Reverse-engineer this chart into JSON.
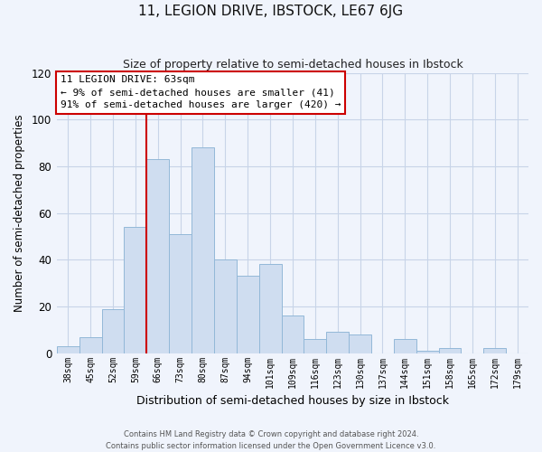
{
  "title": "11, LEGION DRIVE, IBSTOCK, LE67 6JG",
  "subtitle": "Size of property relative to semi-detached houses in Ibstock",
  "xlabel": "Distribution of semi-detached houses by size in Ibstock",
  "ylabel": "Number of semi-detached properties",
  "bin_labels": [
    "38sqm",
    "45sqm",
    "52sqm",
    "59sqm",
    "66sqm",
    "73sqm",
    "80sqm",
    "87sqm",
    "94sqm",
    "101sqm",
    "109sqm",
    "116sqm",
    "123sqm",
    "130sqm",
    "137sqm",
    "144sqm",
    "151sqm",
    "158sqm",
    "165sqm",
    "172sqm",
    "179sqm"
  ],
  "bar_values": [
    3,
    7,
    19,
    54,
    83,
    51,
    88,
    40,
    33,
    38,
    16,
    6,
    9,
    8,
    0,
    6,
    1,
    2,
    0,
    2,
    0
  ],
  "bar_color": "#cfddf0",
  "bar_edge_color": "#93b8d8",
  "vline_color": "#cc0000",
  "vline_bin_index": 4,
  "ylim": [
    0,
    120
  ],
  "yticks": [
    0,
    20,
    40,
    60,
    80,
    100,
    120
  ],
  "annotation_title": "11 LEGION DRIVE: 63sqm",
  "annotation_line1": "← 9% of semi-detached houses are smaller (41)",
  "annotation_line2": "91% of semi-detached houses are larger (420) →",
  "footer1": "Contains HM Land Registry data © Crown copyright and database right 2024.",
  "footer2": "Contains public sector information licensed under the Open Government Licence v3.0.",
  "background_color": "#f0f4fc",
  "grid_color": "#c8d4e8"
}
